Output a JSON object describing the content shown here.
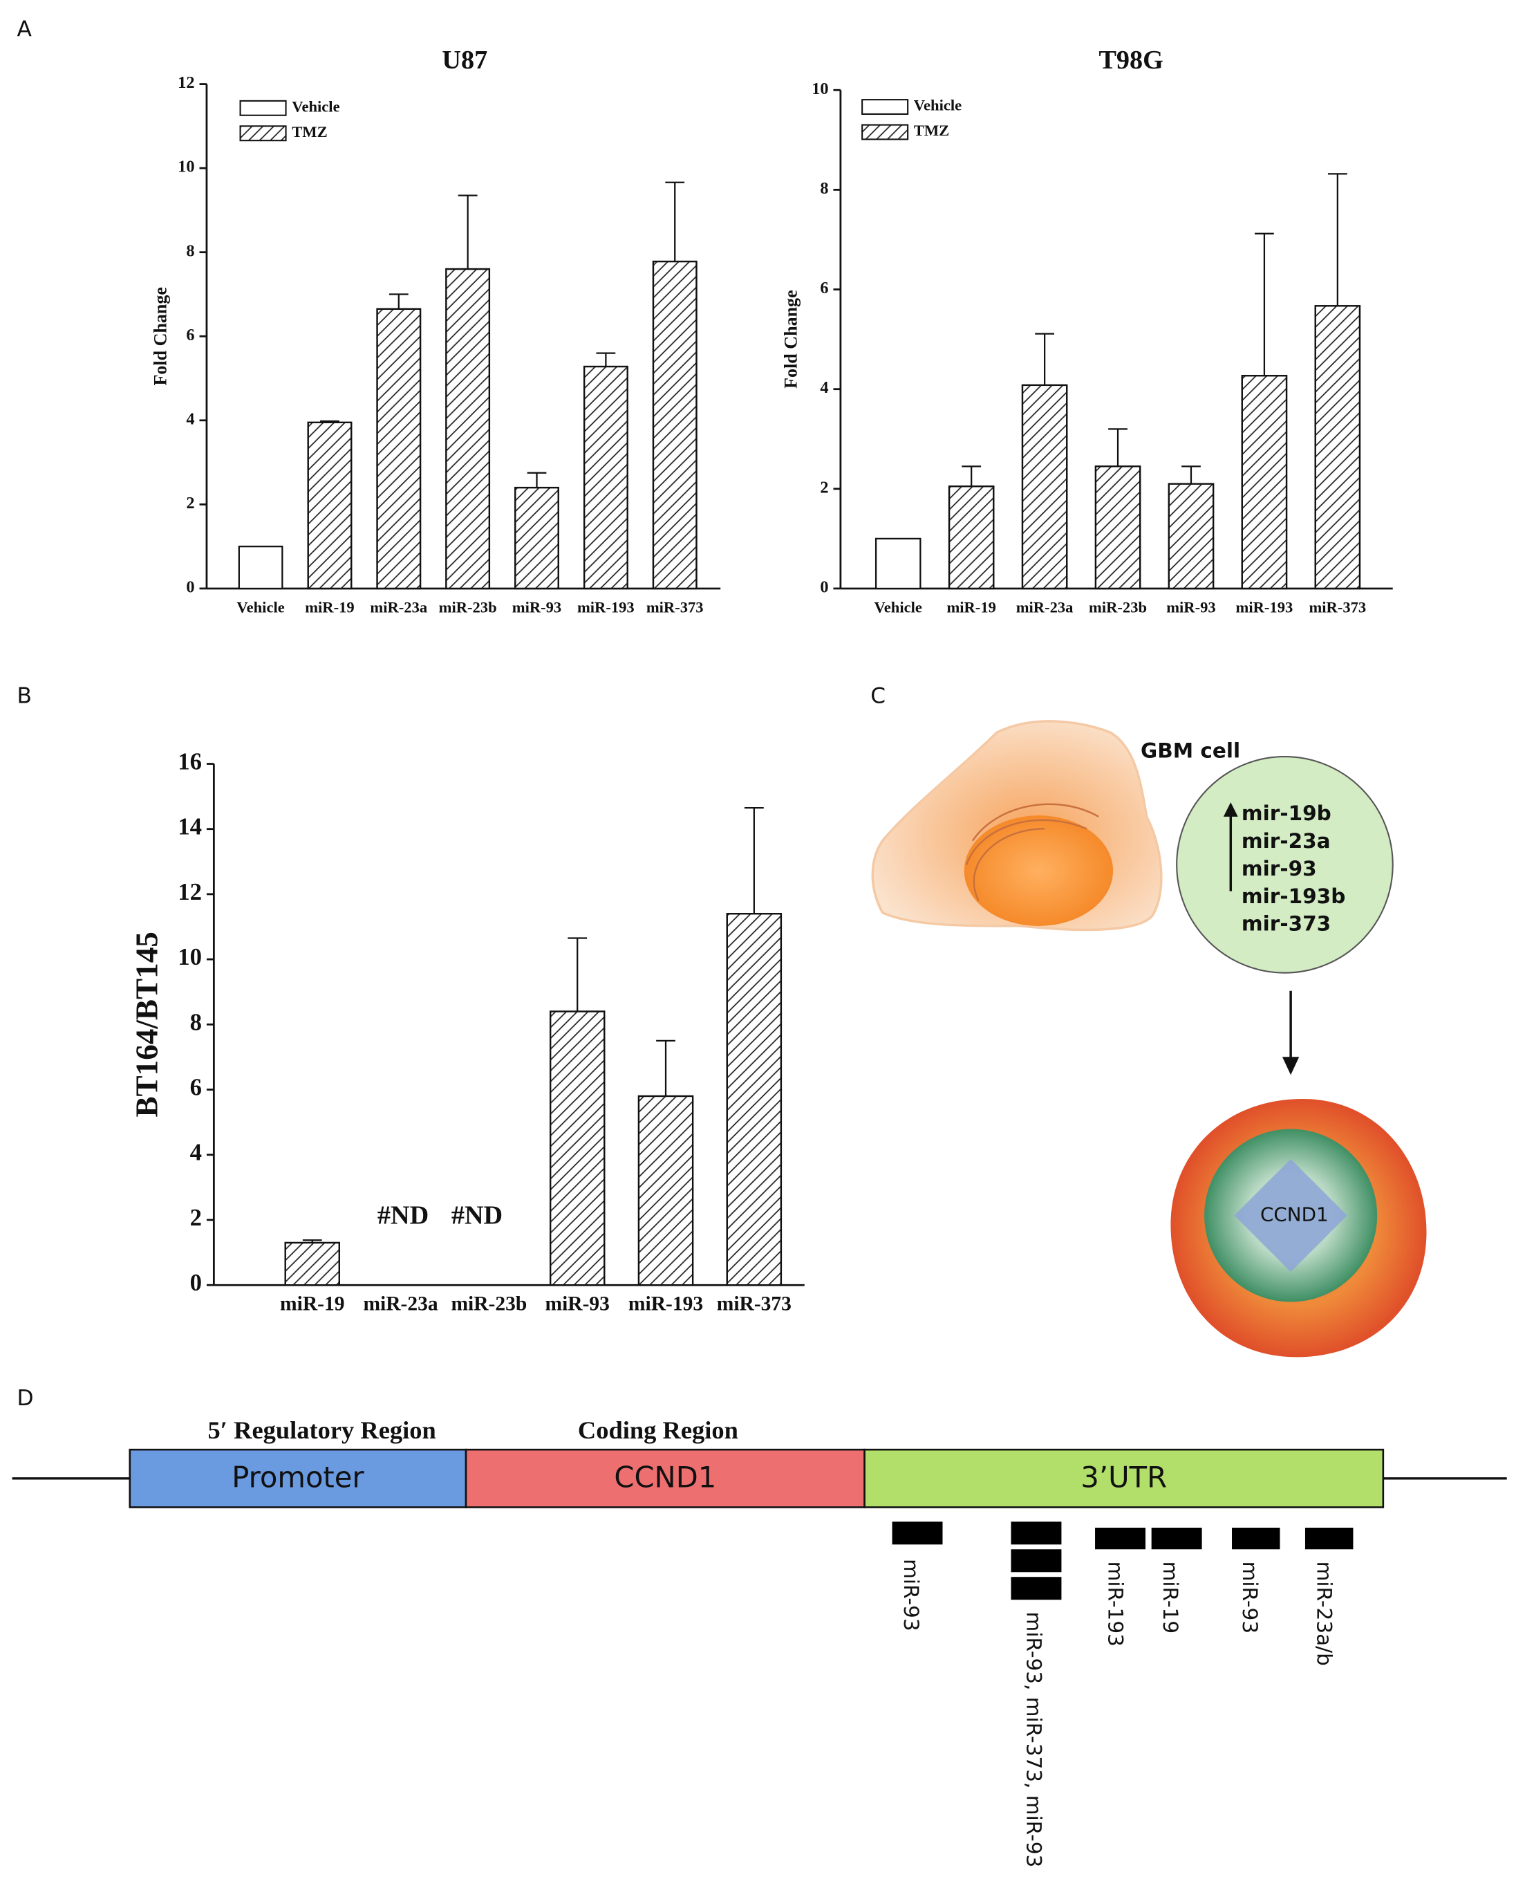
{
  "panel_labels": [
    "A",
    "B",
    "C",
    "D"
  ],
  "chart_data": [
    {
      "type": "bar",
      "title": "U87",
      "ylabel": "Fold Change",
      "categories": [
        "Vehicle",
        "miR-19",
        "miR-23a",
        "miR-23b",
        "miR-93",
        "miR-193",
        "miR-373"
      ],
      "ylim": [
        0,
        12
      ],
      "yticks": [
        0,
        2,
        4,
        6,
        8,
        10,
        12
      ],
      "legend": "upper left",
      "series": [
        {
          "name": "Vehicle",
          "color": "#ffffff",
          "hatch": false,
          "values": [
            1,
            null,
            null,
            null,
            null,
            null,
            null
          ],
          "errors": [
            null,
            null,
            null,
            null,
            null,
            null,
            null
          ]
        },
        {
          "name": "TMZ",
          "color": "#ffffff",
          "hatch": true,
          "values": [
            null,
            3.95,
            6.65,
            7.6,
            2.4,
            5.28,
            7.78
          ],
          "errors": [
            null,
            0.03,
            0.35,
            1.75,
            0.35,
            0.32,
            1.88
          ]
        }
      ]
    },
    {
      "type": "bar",
      "title": "T98G",
      "ylabel": "Fold Change",
      "categories": [
        "Vehicle",
        "miR-19",
        "miR-23a",
        "miR-23b",
        "miR-93",
        "miR-193",
        "miR-373"
      ],
      "ylim": [
        0,
        10
      ],
      "yticks": [
        0,
        2,
        4,
        6,
        8,
        10
      ],
      "legend": "upper left",
      "series": [
        {
          "name": "Vehicle",
          "color": "#ffffff",
          "hatch": false,
          "values": [
            1,
            null,
            null,
            null,
            null,
            null,
            null
          ],
          "errors": [
            null,
            null,
            null,
            null,
            null,
            null,
            null
          ]
        },
        {
          "name": "TMZ",
          "color": "#ffffff",
          "hatch": true,
          "values": [
            null,
            2.05,
            4.08,
            2.45,
            2.1,
            4.27,
            5.67
          ],
          "errors": [
            null,
            0.4,
            1.03,
            0.75,
            0.35,
            2.85,
            2.65
          ]
        }
      ]
    },
    {
      "type": "bar",
      "ylabel": "BT164/BT145",
      "categories": [
        "miR-19",
        "miR-23a",
        "miR-23b",
        "miR-93",
        "miR-193",
        "miR-373"
      ],
      "ylim": [
        0,
        16
      ],
      "yticks": [
        0,
        2,
        4,
        6,
        8,
        10,
        12,
        14,
        16
      ],
      "series": [
        {
          "color": "#ffffff",
          "hatch": true,
          "values": [
            1.3,
            null,
            null,
            8.4,
            5.8,
            11.4
          ],
          "errors": [
            0.08,
            null,
            null,
            2.25,
            1.7,
            3.25
          ]
        }
      ],
      "annotations": [
        "#ND",
        "#ND"
      ]
    }
  ],
  "panel_c": {
    "cell_label": "GBM cell",
    "mirnas": [
      "mir-19b",
      "mir-23a",
      "mir-93",
      "mir-193b",
      "mir-373"
    ],
    "target": "CCND1"
  },
  "panel_d": {
    "region_labels": [
      "5′ Regulatory Region",
      "Coding Region"
    ],
    "segments": [
      "Promoter",
      "CCND1",
      "3’UTR"
    ],
    "sites": [
      "miR-93",
      "miR-93, miR-373, miR-93",
      "miR-193",
      "miR-19",
      "miR-93",
      "miR-23a/b"
    ]
  }
}
